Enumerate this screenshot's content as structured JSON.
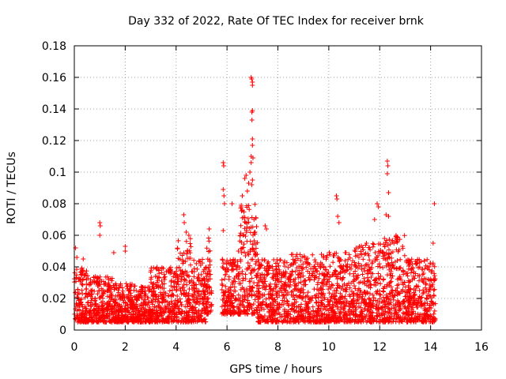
{
  "chart_data": {
    "type": "scatter",
    "title": "Day 332 of 2022, Rate Of TEC Index for receiver brnk",
    "xlabel": "GPS time / hours",
    "ylabel": "ROTI / TECUs",
    "xlim": [
      0,
      16
    ],
    "ylim": [
      0,
      0.18
    ],
    "xticks": [
      0,
      2,
      4,
      6,
      8,
      10,
      12,
      14,
      16
    ],
    "yticks": [
      0,
      0.02,
      0.04,
      0.06,
      0.08,
      0.1,
      0.12,
      0.14,
      0.16,
      0.18
    ],
    "xtick_labels": [
      "0",
      "2",
      "4",
      "6",
      "8",
      "10",
      "12",
      "14",
      "16"
    ],
    "ytick_labels": [
      "0",
      "0.02",
      "0.04",
      "0.06",
      "0.08",
      "0.1",
      "0.12",
      "0.14",
      "0.16",
      "0.18"
    ],
    "grid": true,
    "marker": "+",
    "series": [
      {
        "name": "ROTI",
        "color": "#ff0000",
        "data_ranges": [
          {
            "x": [
              0.0,
              0.5
            ],
            "y": [
              0.005,
              0.04
            ]
          },
          {
            "x": [
              0.5,
              1.5
            ],
            "y": [
              0.005,
              0.035
            ]
          },
          {
            "x": [
              1.5,
              2.3
            ],
            "y": [
              0.005,
              0.03
            ]
          },
          {
            "x": [
              2.3,
              3.0
            ],
            "y": [
              0.005,
              0.028
            ]
          },
          {
            "x": [
              3.0,
              4.0
            ],
            "y": [
              0.005,
              0.04
            ]
          },
          {
            "x": [
              4.0,
              4.6
            ],
            "y": [
              0.005,
              0.058
            ]
          },
          {
            "x": [
              4.6,
              5.2
            ],
            "y": [
              0.005,
              0.045
            ]
          },
          {
            "x": [
              5.2,
              5.4
            ],
            "y": [
              0.01,
              0.06
            ]
          },
          {
            "x": [
              5.8,
              6.5
            ],
            "y": [
              0.01,
              0.045
            ]
          },
          {
            "x": [
              6.5,
              7.2
            ],
            "y": [
              0.01,
              0.08
            ]
          },
          {
            "x": [
              7.2,
              8.5
            ],
            "y": [
              0.005,
              0.045
            ]
          },
          {
            "x": [
              8.5,
              10.0
            ],
            "y": [
              0.005,
              0.048
            ]
          },
          {
            "x": [
              10.0,
              11.0
            ],
            "y": [
              0.005,
              0.05
            ]
          },
          {
            "x": [
              11.0,
              12.0
            ],
            "y": [
              0.005,
              0.055
            ]
          },
          {
            "x": [
              12.0,
              13.0
            ],
            "y": [
              0.005,
              0.06
            ]
          },
          {
            "x": [
              13.0,
              14.2
            ],
            "y": [
              0.005,
              0.045
            ]
          }
        ],
        "outliers": [
          {
            "x": 0.05,
            "y": 0.052
          },
          {
            "x": 0.1,
            "y": 0.046
          },
          {
            "x": 0.35,
            "y": 0.045
          },
          {
            "x": 1.0,
            "y": 0.068
          },
          {
            "x": 1.02,
            "y": 0.066
          },
          {
            "x": 1.0,
            "y": 0.06
          },
          {
            "x": 1.55,
            "y": 0.049
          },
          {
            "x": 2.0,
            "y": 0.053
          },
          {
            "x": 2.0,
            "y": 0.05
          },
          {
            "x": 4.3,
            "y": 0.073
          },
          {
            "x": 4.32,
            "y": 0.068
          },
          {
            "x": 4.4,
            "y": 0.062
          },
          {
            "x": 4.5,
            "y": 0.06
          },
          {
            "x": 5.3,
            "y": 0.064
          },
          {
            "x": 5.85,
            "y": 0.106
          },
          {
            "x": 5.87,
            "y": 0.104
          },
          {
            "x": 5.85,
            "y": 0.089
          },
          {
            "x": 5.88,
            "y": 0.085
          },
          {
            "x": 5.9,
            "y": 0.08
          },
          {
            "x": 5.85,
            "y": 0.063
          },
          {
            "x": 6.2,
            "y": 0.08
          },
          {
            "x": 6.45,
            "y": 0.05
          },
          {
            "x": 6.6,
            "y": 0.085
          },
          {
            "x": 6.7,
            "y": 0.096
          },
          {
            "x": 6.75,
            "y": 0.098
          },
          {
            "x": 6.8,
            "y": 0.088
          },
          {
            "x": 6.85,
            "y": 0.093
          },
          {
            "x": 6.9,
            "y": 0.1
          },
          {
            "x": 6.95,
            "y": 0.106
          },
          {
            "x": 6.95,
            "y": 0.11
          },
          {
            "x": 7.0,
            "y": 0.117
          },
          {
            "x": 7.0,
            "y": 0.121
          },
          {
            "x": 7.02,
            "y": 0.109
          },
          {
            "x": 7.0,
            "y": 0.095
          },
          {
            "x": 6.97,
            "y": 0.092
          },
          {
            "x": 6.98,
            "y": 0.138
          },
          {
            "x": 7.0,
            "y": 0.139
          },
          {
            "x": 6.98,
            "y": 0.133
          },
          {
            "x": 6.95,
            "y": 0.16
          },
          {
            "x": 6.97,
            "y": 0.159
          },
          {
            "x": 7.0,
            "y": 0.157
          },
          {
            "x": 7.0,
            "y": 0.155
          },
          {
            "x": 7.5,
            "y": 0.066
          },
          {
            "x": 7.55,
            "y": 0.064
          },
          {
            "x": 10.3,
            "y": 0.085
          },
          {
            "x": 10.32,
            "y": 0.083
          },
          {
            "x": 10.35,
            "y": 0.072
          },
          {
            "x": 10.4,
            "y": 0.068
          },
          {
            "x": 11.9,
            "y": 0.08
          },
          {
            "x": 11.95,
            "y": 0.078
          },
          {
            "x": 11.8,
            "y": 0.07
          },
          {
            "x": 12.3,
            "y": 0.107
          },
          {
            "x": 12.32,
            "y": 0.104
          },
          {
            "x": 12.3,
            "y": 0.099
          },
          {
            "x": 12.35,
            "y": 0.087
          },
          {
            "x": 12.25,
            "y": 0.073
          },
          {
            "x": 12.35,
            "y": 0.072
          },
          {
            "x": 14.15,
            "y": 0.08
          },
          {
            "x": 14.1,
            "y": 0.055
          }
        ]
      }
    ]
  }
}
